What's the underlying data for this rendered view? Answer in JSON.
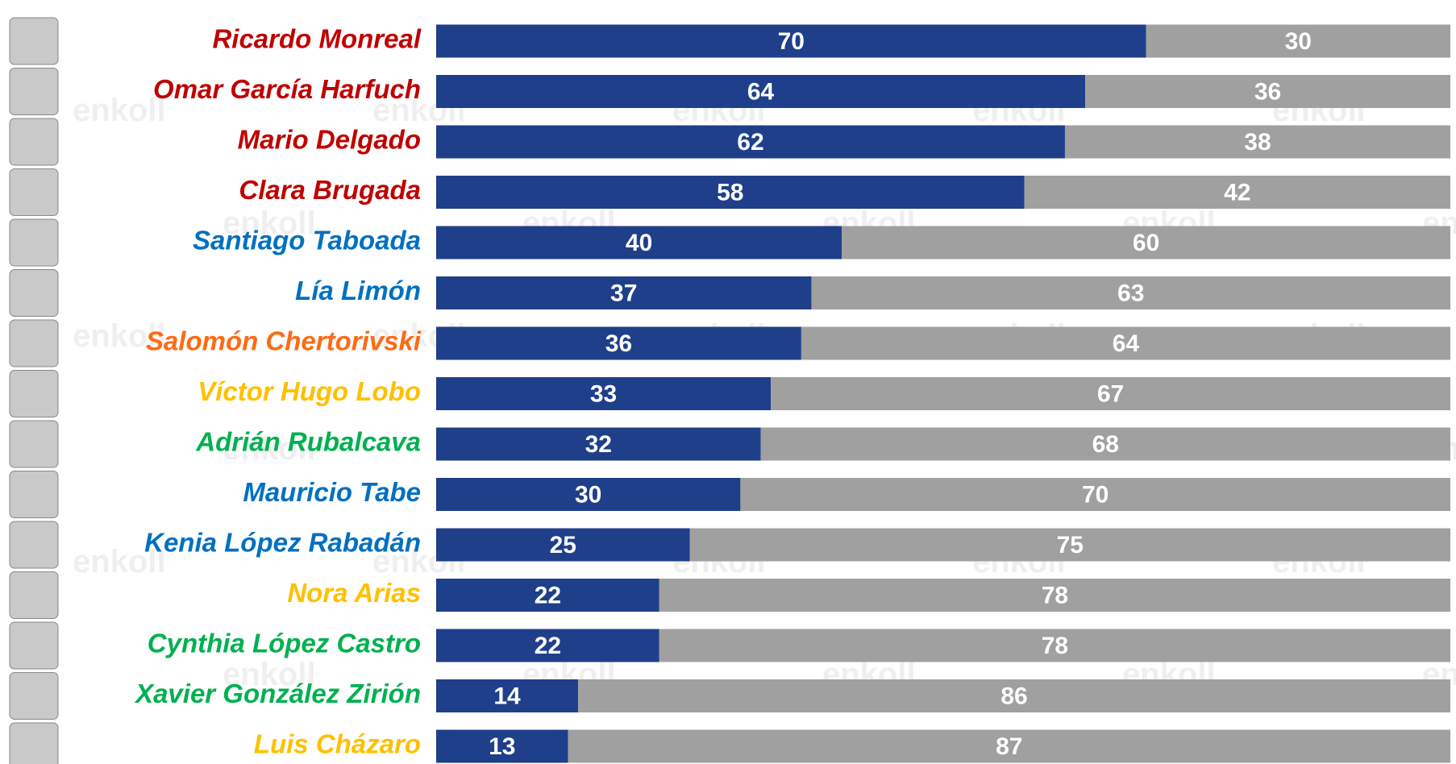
{
  "chart_data": {
    "type": "stacked-bar",
    "orientation": "horizontal",
    "categories": [
      "Ricardo Monreal",
      "Omar García Harfuch",
      "Mario Delgado",
      "Clara Brugada",
      "Santiago Taboada",
      "Lía Limón",
      "Salomón Chertorivski",
      "Víctor Hugo Lobo",
      "Adrián Rubalcava",
      "Mauricio Tabe",
      "Kenia López Rabadán",
      "Nora Arias",
      "Cynthia López Castro",
      "Xavier González Zirión",
      "Luis Cházaro"
    ],
    "category_colors": [
      "#c00000",
      "#c00000",
      "#c00000",
      "#c00000",
      "#0070c0",
      "#0070c0",
      "#ff6a13",
      "#ffc000",
      "#00b050",
      "#0070c0",
      "#0070c0",
      "#ffc000",
      "#00b050",
      "#00b050",
      "#ffc000"
    ],
    "series": [
      {
        "color": "#1f3f8a",
        "values": [
          70,
          64,
          62,
          58,
          40,
          37,
          36,
          33,
          32,
          30,
          25,
          22,
          22,
          14,
          13
        ]
      },
      {
        "color": "#a0a0a0",
        "values": [
          30,
          36,
          38,
          42,
          60,
          63,
          64,
          67,
          68,
          70,
          75,
          78,
          78,
          86,
          87
        ]
      }
    ],
    "watermark": "enkoll"
  }
}
